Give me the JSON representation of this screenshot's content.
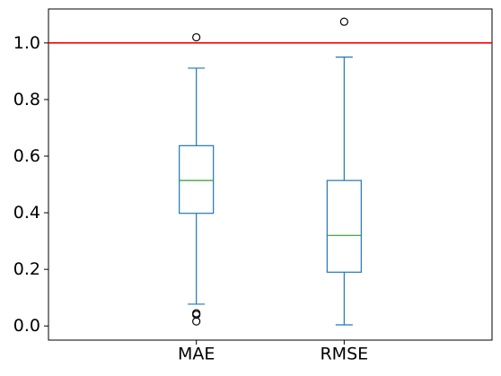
{
  "chart_data": {
    "type": "box",
    "categories": [
      "MAE",
      "RMSE"
    ],
    "boxes": [
      {
        "name": "MAE",
        "whisker_low": 0.077,
        "q1": 0.398,
        "median": 0.514,
        "q3": 0.637,
        "whisker_high": 0.911,
        "outliers": [
          1.02,
          0.045,
          0.04,
          0.016
        ]
      },
      {
        "name": "RMSE",
        "whisker_low": 0.004,
        "q1": 0.19,
        "median": 0.32,
        "q3": 0.514,
        "whisker_high": 0.95,
        "outliers": [
          1.075
        ]
      }
    ],
    "reference_line": {
      "y": 1.0,
      "color": "#ff0000"
    },
    "ylim": [
      -0.05,
      1.12
    ],
    "yticks": [
      0.0,
      0.2,
      0.4,
      0.6,
      0.8,
      1.0
    ],
    "ytick_labels": [
      "0.0",
      "0.2",
      "0.4",
      "0.6",
      "0.8",
      "1.0"
    ],
    "grid": false,
    "colors": {
      "box": "#1f77b4",
      "median": "#2ca02c",
      "outlier": "#000000"
    }
  }
}
